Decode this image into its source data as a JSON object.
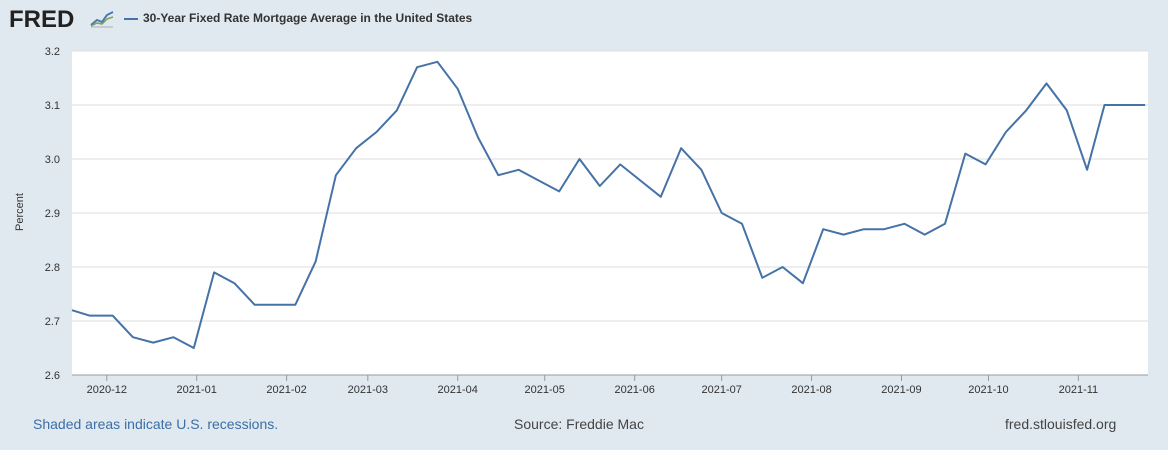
{
  "header": {
    "logo_text": "FRED",
    "logo_icon": "chart-line-icon",
    "legend_label": "30-Year Fixed Rate Mortgage Average in the United States"
  },
  "footer": {
    "recession_note": "Shaded areas indicate U.S. recessions.",
    "source": "Source: Freddie Mac",
    "site": "fred.stlouisfed.org"
  },
  "colors": {
    "line": "#4572a7",
    "plot_bg": "#ffffff",
    "page_bg": "#e1e9f0",
    "grid": "#dddddd"
  },
  "chart_data": {
    "type": "line",
    "title": "30-Year Fixed Rate Mortgage Average in the United States",
    "xlabel": "",
    "ylabel": "Percent",
    "ylim": [
      2.6,
      3.2
    ],
    "yticks": [
      2.6,
      2.7,
      2.8,
      2.9,
      3.0,
      3.1,
      3.2
    ],
    "ytick_labels": [
      "2.6",
      "2.7",
      "2.8",
      "2.9",
      "3.0",
      "3.1",
      "3.2"
    ],
    "xlim": [
      "2020-11-19",
      "2021-11-25"
    ],
    "xticks": [
      "2020-12-01",
      "2021-01-01",
      "2021-02-01",
      "2021-03-01",
      "2021-04-01",
      "2021-05-01",
      "2021-06-01",
      "2021-07-01",
      "2021-08-01",
      "2021-09-01",
      "2021-10-01",
      "2021-11-01"
    ],
    "xtick_labels": [
      "2020-12",
      "2021-01",
      "2021-02",
      "2021-03",
      "2021-04",
      "2021-05",
      "2021-06",
      "2021-07",
      "2021-08",
      "2021-09",
      "2021-10",
      "2021-11"
    ],
    "grid": true,
    "series": [
      {
        "name": "30-Year Fixed Rate Mortgage Average in the United States",
        "x": [
          "2020-11-19",
          "2020-11-25",
          "2020-12-03",
          "2020-12-10",
          "2020-12-17",
          "2020-12-24",
          "2020-12-31",
          "2021-01-07",
          "2021-01-14",
          "2021-01-21",
          "2021-01-28",
          "2021-02-04",
          "2021-02-11",
          "2021-02-18",
          "2021-02-25",
          "2021-03-04",
          "2021-03-11",
          "2021-03-18",
          "2021-03-25",
          "2021-04-01",
          "2021-04-08",
          "2021-04-15",
          "2021-04-22",
          "2021-04-29",
          "2021-05-06",
          "2021-05-13",
          "2021-05-20",
          "2021-05-27",
          "2021-06-03",
          "2021-06-10",
          "2021-06-17",
          "2021-06-24",
          "2021-07-01",
          "2021-07-08",
          "2021-07-15",
          "2021-07-22",
          "2021-07-29",
          "2021-08-05",
          "2021-08-12",
          "2021-08-19",
          "2021-08-26",
          "2021-09-02",
          "2021-09-09",
          "2021-09-16",
          "2021-09-23",
          "2021-09-30",
          "2021-10-07",
          "2021-10-14",
          "2021-10-21",
          "2021-10-28",
          "2021-11-04",
          "2021-11-10",
          "2021-11-18",
          "2021-11-24"
        ],
        "values": [
          2.72,
          2.71,
          2.71,
          2.67,
          2.66,
          2.67,
          2.65,
          2.79,
          2.77,
          2.73,
          2.73,
          2.73,
          2.81,
          2.97,
          3.02,
          3.05,
          3.09,
          3.17,
          3.18,
          3.13,
          3.04,
          2.97,
          2.98,
          2.96,
          2.94,
          3.0,
          2.95,
          2.99,
          2.96,
          2.93,
          3.02,
          2.98,
          2.9,
          2.88,
          2.78,
          2.8,
          2.77,
          2.87,
          2.86,
          2.87,
          2.87,
          2.88,
          2.86,
          2.88,
          3.01,
          2.99,
          3.05,
          3.09,
          3.14,
          3.09,
          2.98,
          3.1,
          3.1,
          3.1
        ]
      }
    ]
  }
}
